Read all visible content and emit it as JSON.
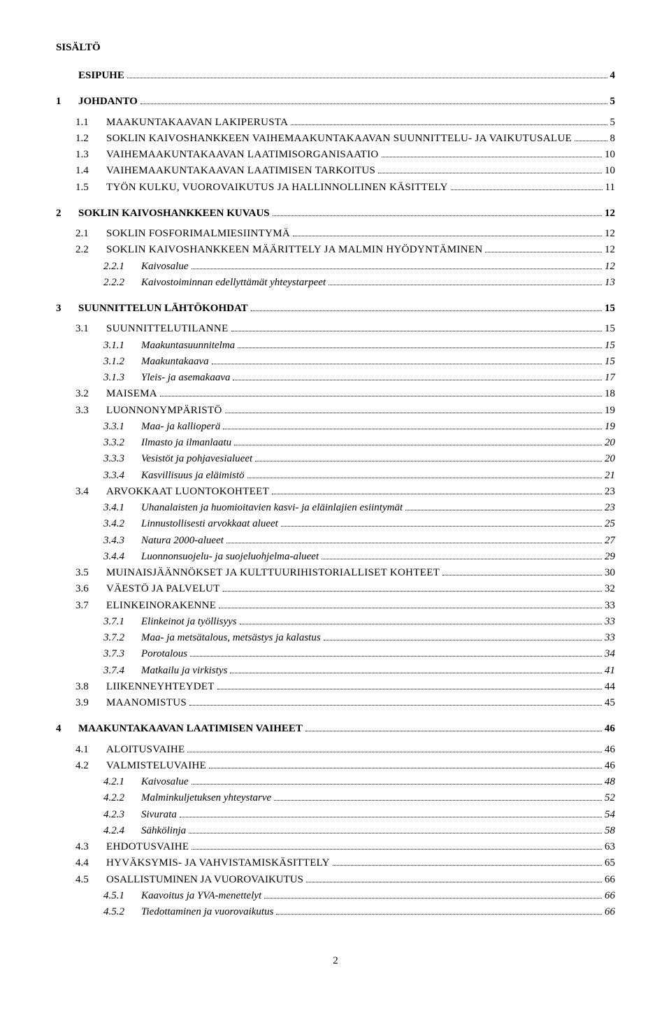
{
  "title": "SISÄLTÖ",
  "page_number": "2",
  "entries": [
    {
      "level": 1,
      "num": "",
      "label": "ESIPUHE",
      "page": "4",
      "is_esipuhe": true
    },
    {
      "level": 1,
      "num": "1",
      "label": "JOHDANTO",
      "page": "5"
    },
    {
      "level": 2,
      "num": "1.1",
      "label": "MAAKUNTAKAAVAN LAKIPERUSTA",
      "page": "5",
      "sc": true
    },
    {
      "level": 2,
      "num": "1.2",
      "label": "SOKLIN KAIVOSHANKKEEN VAIHEMAAKUNTAKAAVAN SUUNNITTELU- JA VAIKUTUSALUE",
      "page": "8",
      "sc": true
    },
    {
      "level": 2,
      "num": "1.3",
      "label": "VAIHEMAAKUNTAKAAVAN LAATIMISORGANISAATIO",
      "page": "10",
      "sc": true
    },
    {
      "level": 2,
      "num": "1.4",
      "label": "VAIHEMAAKUNTAKAAVAN LAATIMISEN TARKOITUS",
      "page": "10",
      "sc": true
    },
    {
      "level": 2,
      "num": "1.5",
      "label": "TYÖN KULKU, VUOROVAIKUTUS JA HALLINNOLLINEN KÄSITTELY",
      "page": "11",
      "sc": true
    },
    {
      "level": 1,
      "num": "2",
      "label": "SOKLIN KAIVOSHANKKEEN KUVAUS",
      "page": "12"
    },
    {
      "level": 2,
      "num": "2.1",
      "label": "SOKLIN FOSFORIMALMIESIINTYMÄ",
      "page": "12",
      "sc": true
    },
    {
      "level": 2,
      "num": "2.2",
      "label": "SOKLIN KAIVOSHANKKEEN MÄÄRITTELY JA MALMIN HYÖDYNTÄMINEN",
      "page": "12",
      "sc": true
    },
    {
      "level": 3,
      "num": "2.2.1",
      "label": "Kaivosalue",
      "page": "12"
    },
    {
      "level": 3,
      "num": "2.2.2",
      "label": "Kaivostoiminnan edellyttämät yhteystarpeet",
      "page": "13"
    },
    {
      "level": 1,
      "num": "3",
      "label": "SUUNNITTELUN LÄHTÖKOHDAT",
      "page": "15"
    },
    {
      "level": 2,
      "num": "3.1",
      "label": "SUUNNITTELUTILANNE",
      "page": "15",
      "sc": true
    },
    {
      "level": 3,
      "num": "3.1.1",
      "label": "Maakuntasuunnitelma",
      "page": "15"
    },
    {
      "level": 3,
      "num": "3.1.2",
      "label": "Maakuntakaava",
      "page": "15"
    },
    {
      "level": 3,
      "num": "3.1.3",
      "label": "Yleis- ja asemakaava",
      "page": "17"
    },
    {
      "level": 2,
      "num": "3.2",
      "label": "MAISEMA",
      "page": "18",
      "sc": true
    },
    {
      "level": 2,
      "num": "3.3",
      "label": "LUONNONYMPÄRISTÖ",
      "page": "19",
      "sc": true
    },
    {
      "level": 3,
      "num": "3.3.1",
      "label": "Maa- ja kallioperä",
      "page": "19"
    },
    {
      "level": 3,
      "num": "3.3.2",
      "label": "Ilmasto ja ilmanlaatu",
      "page": "20"
    },
    {
      "level": 3,
      "num": "3.3.3",
      "label": "Vesistöt ja pohjavesialueet",
      "page": "20"
    },
    {
      "level": 3,
      "num": "3.3.4",
      "label": "Kasvillisuus ja eläimistö",
      "page": "21"
    },
    {
      "level": 2,
      "num": "3.4",
      "label": "ARVOKKAAT LUONTOKOHTEET",
      "page": "23",
      "sc": true
    },
    {
      "level": 3,
      "num": "3.4.1",
      "label": "Uhanalaisten ja huomioitavien kasvi- ja eläinlajien esiintymät",
      "page": "23"
    },
    {
      "level": 3,
      "num": "3.4.2",
      "label": "Linnustollisesti arvokkaat alueet",
      "page": "25"
    },
    {
      "level": 3,
      "num": "3.4.3",
      "label": "Natura 2000-alueet",
      "page": "27"
    },
    {
      "level": 3,
      "num": "3.4.4",
      "label": "Luonnonsuojelu- ja suojeluohjelma-alueet",
      "page": "29"
    },
    {
      "level": 2,
      "num": "3.5",
      "label": "MUINAISJÄÄNNÖKSET JA KULTTUURIHISTORIALLISET KOHTEET",
      "page": "30",
      "sc": true
    },
    {
      "level": 2,
      "num": "3.6",
      "label": "VÄESTÖ JA PALVELUT",
      "page": "32",
      "sc": true
    },
    {
      "level": 2,
      "num": "3.7",
      "label": "ELINKEINORAKENNE",
      "page": "33",
      "sc": true
    },
    {
      "level": 3,
      "num": "3.7.1",
      "label": "Elinkeinot ja työllisyys",
      "page": "33"
    },
    {
      "level": 3,
      "num": "3.7.2",
      "label": "Maa- ja metsätalous, metsästys ja kalastus",
      "page": "33"
    },
    {
      "level": 3,
      "num": "3.7.3",
      "label": "Porotalous",
      "page": "34"
    },
    {
      "level": 3,
      "num": "3.7.4",
      "label": "Matkailu ja virkistys",
      "page": "41"
    },
    {
      "level": 2,
      "num": "3.8",
      "label": "LIIKENNEYHTEYDET",
      "page": "44",
      "sc": true
    },
    {
      "level": 2,
      "num": "3.9",
      "label": "MAANOMISTUS",
      "page": "45",
      "sc": true
    },
    {
      "level": 1,
      "num": "4",
      "label": "MAAKUNTAKAAVAN LAATIMISEN VAIHEET",
      "page": "46"
    },
    {
      "level": 2,
      "num": "4.1",
      "label": "ALOITUSVAIHE",
      "page": "46",
      "sc": true
    },
    {
      "level": 2,
      "num": "4.2",
      "label": "VALMISTELUVAIHE",
      "page": "46",
      "sc": true
    },
    {
      "level": 3,
      "num": "4.2.1",
      "label": "Kaivosalue",
      "page": "48"
    },
    {
      "level": 3,
      "num": "4.2.2",
      "label": "Malminkuljetuksen yhteystarve",
      "page": "52"
    },
    {
      "level": 3,
      "num": "4.2.3",
      "label": "Sivurata",
      "page": "54"
    },
    {
      "level": 3,
      "num": "4.2.4",
      "label": "Sähkölinja",
      "page": "58"
    },
    {
      "level": 2,
      "num": "4.3",
      "label": "EHDOTUSVAIHE",
      "page": "63",
      "sc": true
    },
    {
      "level": 2,
      "num": "4.4",
      "label": "HYVÄKSYMIS- JA VAHVISTAMISKÄSITTELY",
      "page": "65",
      "sc": true
    },
    {
      "level": 2,
      "num": "4.5",
      "label": "OSALLISTUMINEN JA VUOROVAIKUTUS",
      "page": "66"
    },
    {
      "level": 3,
      "num": "4.5.1",
      "label": "Kaavoitus ja YVA-menettelyt",
      "page": "66"
    },
    {
      "level": 3,
      "num": "4.5.2",
      "label": "Tiedottaminen ja vuorovaikutus",
      "page": "66"
    }
  ]
}
